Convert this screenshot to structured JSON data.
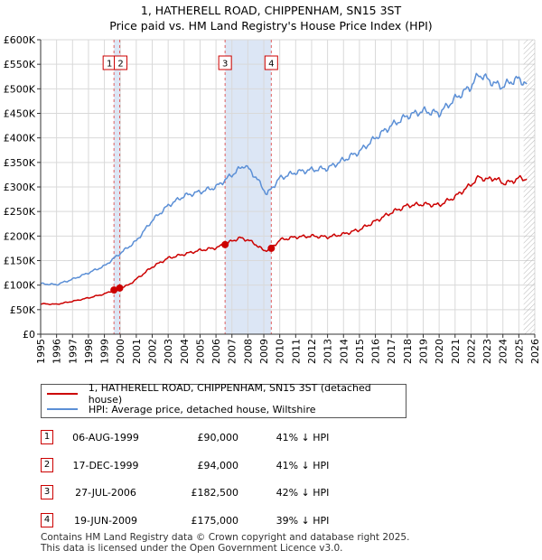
{
  "title_line1": "1, HATHERELL ROAD, CHIPPENHAM, SN15 3ST",
  "title_line2": "Price paid vs. HM Land Registry's House Price Index (HPI)",
  "chart_data": {
    "type": "line",
    "title": "Price paid vs. HM Land Registry's House Price Index (HPI)",
    "xlabel": "",
    "ylabel": "",
    "xlim": [
      1995,
      2026
    ],
    "ylim": [
      0,
      600000
    ],
    "y_ticks": [
      0,
      50000,
      100000,
      150000,
      200000,
      250000,
      300000,
      350000,
      400000,
      450000,
      500000,
      550000,
      600000
    ],
    "y_tick_labels": [
      "£0",
      "£50K",
      "£100K",
      "£150K",
      "£200K",
      "£250K",
      "£300K",
      "£350K",
      "£400K",
      "£450K",
      "£500K",
      "£550K",
      "£600K"
    ],
    "x_ticks": [
      1995,
      1996,
      1997,
      1998,
      1999,
      2000,
      2001,
      2002,
      2003,
      2004,
      2005,
      2006,
      2007,
      2008,
      2009,
      2010,
      2011,
      2012,
      2013,
      2014,
      2015,
      2016,
      2017,
      2018,
      2019,
      2020,
      2021,
      2022,
      2023,
      2024,
      2025,
      2026
    ],
    "grid": true,
    "legend_position": "below",
    "series": [
      {
        "name": "1, HATHERELL ROAD, CHIPPENHAM, SN15 3ST (detached house)",
        "color": "#cc0000",
        "x": [
          1995,
          1996,
          1997,
          1998,
          1999,
          1999.6,
          1999.96,
          2000.5,
          2001,
          2002,
          2003,
          2004,
          2005,
          2006,
          2006.57,
          2007,
          2007.5,
          2008,
          2008.5,
          2009,
          2009.47,
          2010,
          2011,
          2012,
          2013,
          2014,
          2015,
          2016,
          2017,
          2018,
          2019,
          2020,
          2021,
          2022,
          2022.5,
          2023,
          2023.5,
          2024,
          2024.5,
          2025,
          2025.5
        ],
        "values": [
          62000,
          61000,
          67000,
          74000,
          82000,
          90000,
          94000,
          100000,
          112000,
          137000,
          155000,
          163000,
          171000,
          176000,
          182500,
          190000,
          196000,
          192000,
          183000,
          170000,
          175000,
          192000,
          198000,
          200000,
          198000,
          204000,
          213000,
          230000,
          248000,
          262000,
          265000,
          263000,
          280000,
          305000,
          320000,
          315000,
          318000,
          308000,
          310000,
          318000,
          316000
        ]
      },
      {
        "name": "HPI: Average price, detached house, Wiltshire",
        "color": "#5b8fd6",
        "x": [
          1995,
          1996,
          1997,
          1998,
          1999,
          2000,
          2001,
          2002,
          2003,
          2004,
          2005,
          2006,
          2007,
          2007.8,
          2008.5,
          2009.2,
          2010,
          2011,
          2012,
          2013,
          2014,
          2015,
          2016,
          2017,
          2018,
          2019,
          2020,
          2021,
          2022,
          2022.5,
          2023,
          2023.5,
          2024,
          2024.5,
          2025,
          2025.5
        ],
        "values": [
          103000,
          101000,
          112000,
          125000,
          139000,
          165000,
          190000,
          232000,
          262000,
          282000,
          290000,
          300000,
          325000,
          345000,
          320000,
          285000,
          318000,
          330000,
          335000,
          338000,
          355000,
          372000,
          400000,
          425000,
          445000,
          455000,
          450000,
          480000,
          505000,
          530000,
          520000,
          510000,
          505000,
          515000,
          520000,
          510000
        ]
      }
    ],
    "sale_markers": [
      {
        "label": "1",
        "x": 1999.6,
        "value": 90000
      },
      {
        "label": "2",
        "x": 1999.96,
        "value": 94000
      },
      {
        "label": "3",
        "x": 2006.57,
        "value": 182500
      },
      {
        "label": "4",
        "x": 2009.47,
        "value": 175000
      }
    ],
    "shaded_ranges": [
      [
        1999.6,
        1999.96
      ],
      [
        2006.57,
        2009.47
      ]
    ]
  },
  "legend": {
    "property": "1, HATHERELL ROAD, CHIPPENHAM, SN15 3ST (detached house)",
    "hpi": "HPI: Average price, detached house, Wiltshire",
    "property_color": "#cc0000",
    "hpi_color": "#5b8fd6"
  },
  "sales": [
    {
      "num": "1",
      "date": "06-AUG-1999",
      "price": "£90,000",
      "hpi": "41% ↓ HPI"
    },
    {
      "num": "2",
      "date": "17-DEC-1999",
      "price": "£94,000",
      "hpi": "41% ↓ HPI"
    },
    {
      "num": "3",
      "date": "27-JUL-2006",
      "price": "£182,500",
      "hpi": "42% ↓ HPI"
    },
    {
      "num": "4",
      "date": "19-JUN-2009",
      "price": "£175,000",
      "hpi": "39% ↓ HPI"
    }
  ],
  "footer": {
    "line1": "Contains HM Land Registry data © Crown copyright and database right 2025.",
    "line2": "This data is licensed under the Open Government Licence v3.0."
  }
}
